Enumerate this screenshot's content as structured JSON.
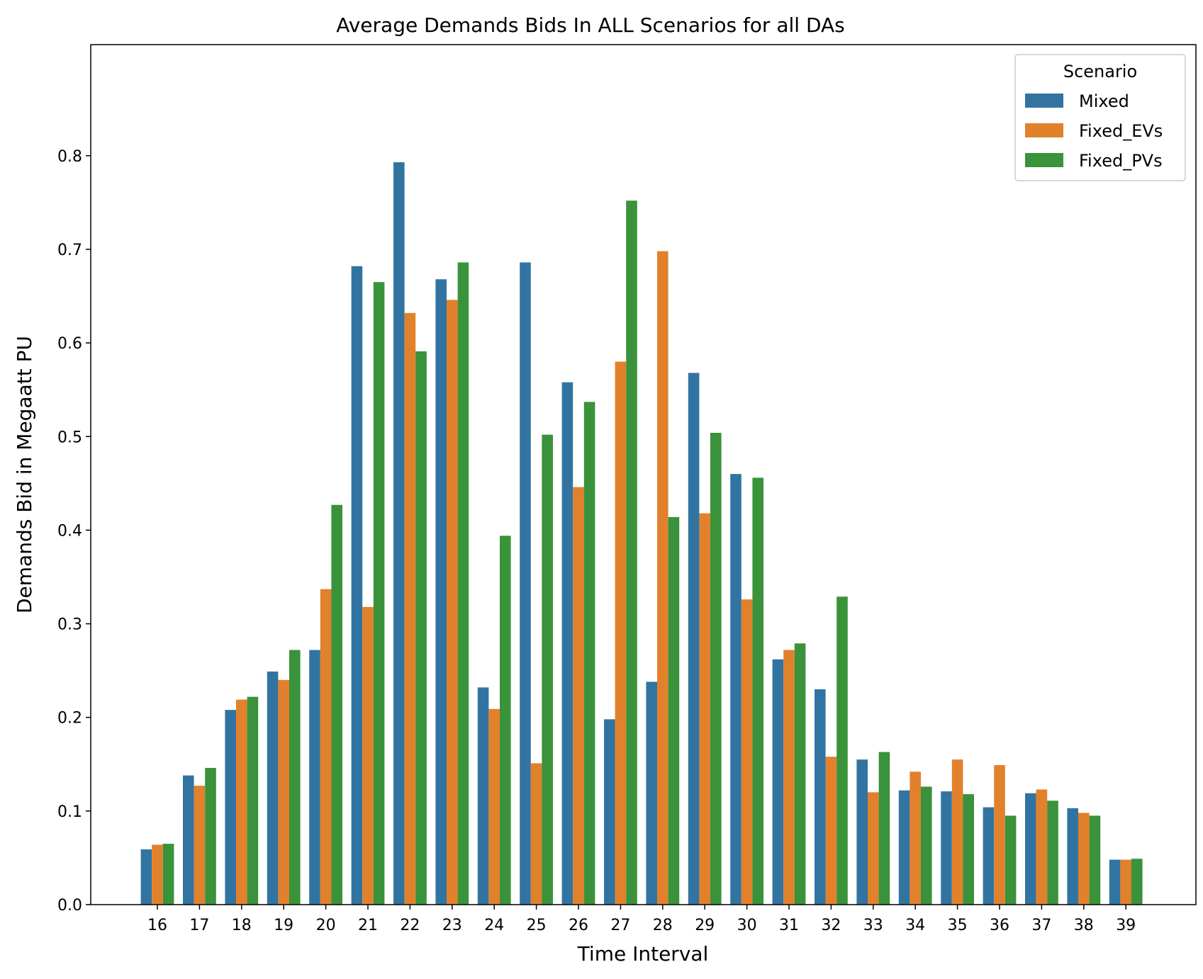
{
  "chart_data": {
    "type": "bar",
    "title": "Average Demands Bids In ALL Scenarios for all DAs",
    "xlabel": "Time Interval",
    "ylabel": "Demands Bid in Megaatt PU",
    "ylim": [
      0,
      0.835
    ],
    "yticks": [
      "0.0",
      "0.1",
      "0.2",
      "0.3",
      "0.4",
      "0.5",
      "0.6",
      "0.7",
      "0.8"
    ],
    "grid": false,
    "legend": {
      "title": "Scenario",
      "placement": "top-right"
    },
    "categories": [
      "16",
      "17",
      "18",
      "19",
      "20",
      "21",
      "22",
      "23",
      "24",
      "25",
      "26",
      "27",
      "28",
      "29",
      "30",
      "31",
      "32",
      "33",
      "34",
      "35",
      "36",
      "37",
      "38",
      "39"
    ],
    "series": [
      {
        "name": "Mixed",
        "color": "#3274a1",
        "values": [
          0.059,
          0.138,
          0.208,
          0.249,
          0.272,
          0.682,
          0.793,
          0.668,
          0.232,
          0.686,
          0.558,
          0.198,
          0.238,
          0.568,
          0.46,
          0.262,
          0.23,
          0.155,
          0.122,
          0.121,
          0.104,
          0.119,
          0.103,
          0.048
        ]
      },
      {
        "name": "Fixed_EVs",
        "color": "#e1812c",
        "values": [
          0.064,
          0.127,
          0.219,
          0.24,
          0.337,
          0.318,
          0.632,
          0.646,
          0.209,
          0.151,
          0.446,
          0.58,
          0.698,
          0.418,
          0.326,
          0.272,
          0.158,
          0.12,
          0.142,
          0.155,
          0.149,
          0.123,
          0.098,
          0.048
        ]
      },
      {
        "name": "Fixed_PVs",
        "color": "#3a923a",
        "values": [
          0.065,
          0.146,
          0.222,
          0.272,
          0.427,
          0.665,
          0.591,
          0.686,
          0.394,
          0.502,
          0.537,
          0.752,
          0.414,
          0.504,
          0.456,
          0.279,
          0.329,
          0.163,
          0.126,
          0.118,
          0.095,
          0.111,
          0.095,
          0.049
        ]
      }
    ]
  }
}
